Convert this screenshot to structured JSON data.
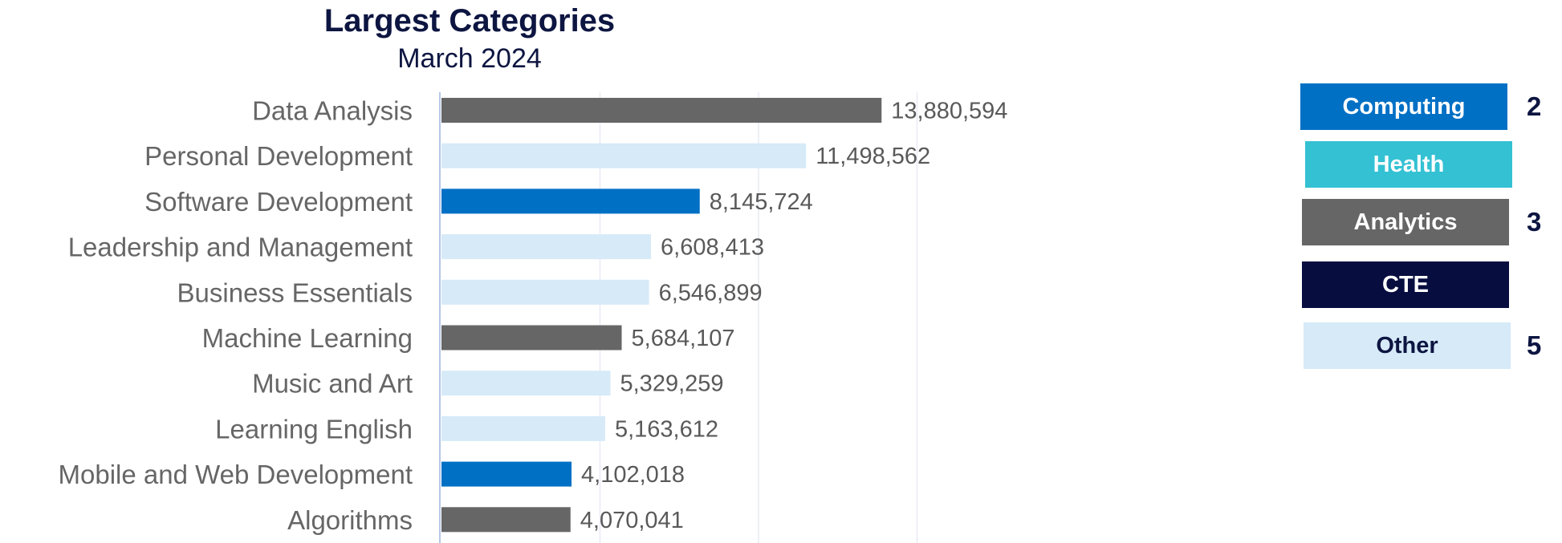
{
  "chart_data": {
    "type": "bar",
    "orientation": "horizontal",
    "title": "Largest Categories",
    "subtitle": "March 2024",
    "categories": [
      "Data Analysis",
      "Personal Development",
      "Software Development",
      "Leadership and Management",
      "Business Essentials",
      "Machine Learning",
      "Music and Art",
      "Learning English",
      "Mobile and Web Development",
      "Algorithms"
    ],
    "values": [
      13880594,
      11498562,
      8145724,
      6608413,
      6546899,
      5684107,
      5329259,
      5163612,
      4102018,
      4070041
    ],
    "value_labels": [
      "13,880,594",
      "11,498,562",
      "8,145,724",
      "6,608,413",
      "6,546,899",
      "5,684,107",
      "5,329,259",
      "5,163,612",
      "4,102,018",
      "4,070,041"
    ],
    "bar_groups": [
      "Analytics",
      "Other",
      "Computing",
      "Other",
      "Other",
      "Analytics",
      "Other",
      "Other",
      "Computing",
      "Analytics"
    ],
    "xlim": [
      0,
      20000000
    ],
    "grid": true,
    "legend": {
      "placement": "right",
      "items": [
        {
          "name": "Computing",
          "color": "#0070c5",
          "text_color": "#ffffff",
          "count": "2"
        },
        {
          "name": "Health",
          "color": "#33c1d3",
          "text_color": "#ffffff",
          "count": ""
        },
        {
          "name": "Analytics",
          "color": "#666666",
          "text_color": "#ffffff",
          "count": "3"
        },
        {
          "name": "CTE",
          "color": "#070d3f",
          "text_color": "#ffffff",
          "count": ""
        },
        {
          "name": "Other",
          "color": "#d6eaf8",
          "text_color": "#0d1541",
          "count": "5"
        }
      ]
    }
  }
}
